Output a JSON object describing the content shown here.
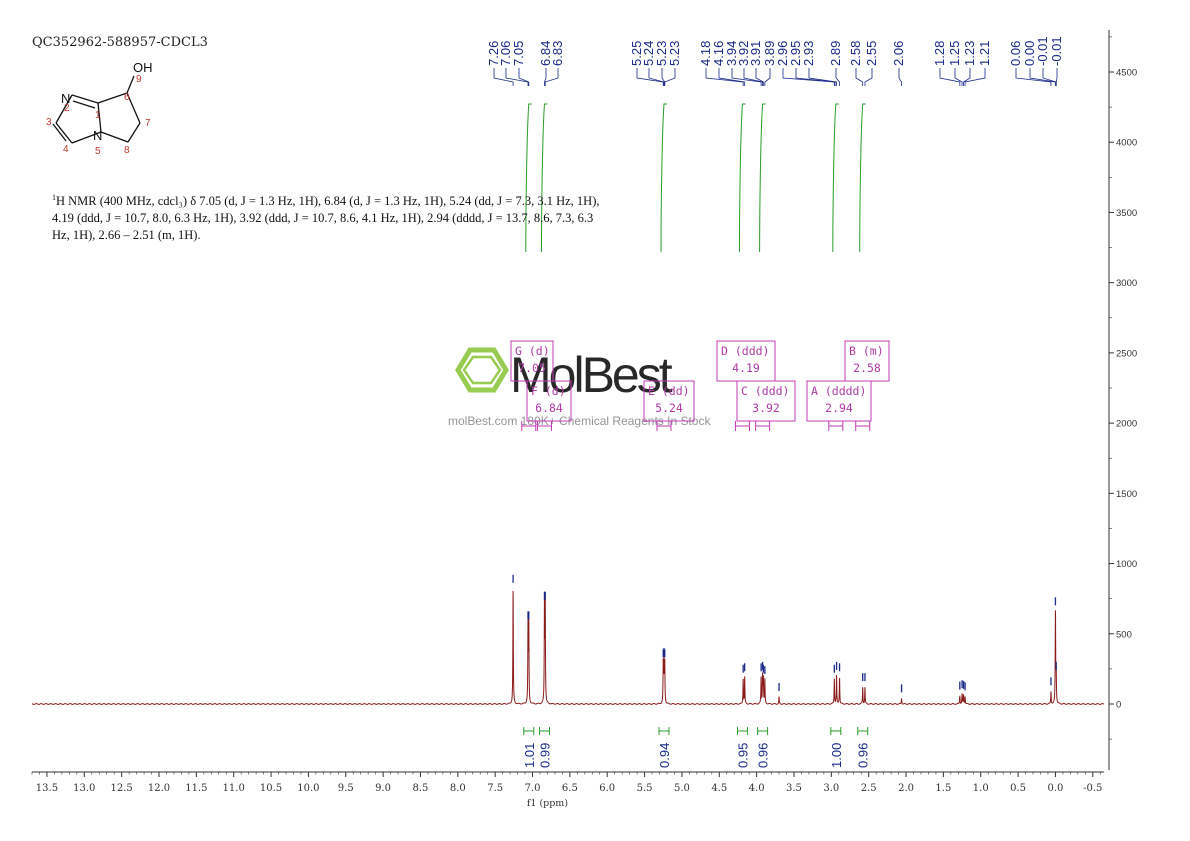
{
  "sample_id": "QC352962-588957-CDCL3",
  "structure": {
    "atoms": [
      "N",
      "OH",
      "N"
    ],
    "numbers": [
      "1",
      "2",
      "3",
      "4",
      "5",
      "6",
      "7",
      "8",
      "9"
    ]
  },
  "nmr_description": {
    "sup": "1",
    "text": "H NMR (400 MHz, cdcl₃) δ 7.05 (d, J = 1.3 Hz, 1H), 6.84 (d, J = 1.3 Hz, 1H), 5.24 (dd, J = 7.3, 3.1 Hz, 1H), 4.19 (ddd, J = 10.7, 8.0, 6.3 Hz, 1H), 3.92 (ddd, J = 10.7, 8.6, 4.1 Hz, 1H), 2.94 (dddd, J = 13.7, 8.6, 7.3, 6.3 Hz, 1H), 2.66 – 2.51 (m, 1H)."
  },
  "watermark": {
    "brand": "MolBest",
    "tagline": "molBest.com  180K+ Chemical Reagents In Stock"
  },
  "colors": {
    "spectrum": "#8b1a1a",
    "integral": "#2a9d2a",
    "peak_label": "#1a2a8a",
    "multiplet_box": "#c23bb5",
    "watermark_green": "#8dc63f"
  },
  "chart_data": {
    "type": "line",
    "xlabel": "f1 (ppm)",
    "xlim": [
      13.7,
      -0.65
    ],
    "x_reversed": true,
    "x_ticks": [
      "13.5",
      "13.0",
      "12.5",
      "12.0",
      "11.5",
      "11.0",
      "10.5",
      "10.0",
      "9.5",
      "9.0",
      "8.5",
      "8.0",
      "7.5",
      "7.0",
      "6.5",
      "6.0",
      "5.5",
      "5.0",
      "4.5",
      "4.0",
      "3.5",
      "3.0",
      "2.5",
      "2.0",
      "1.5",
      "1.0",
      "0.5",
      "0.0",
      "-0.5"
    ],
    "ylim": [
      -500,
      4750
    ],
    "y_ticks": [
      "4500",
      "4000",
      "3500",
      "3000",
      "2500",
      "2000",
      "1500",
      "1000",
      "500",
      "0"
    ],
    "peaks": [
      {
        "ppm": 7.26,
        "intensity": 820
      },
      {
        "ppm": 7.06,
        "intensity": 560
      },
      {
        "ppm": 7.05,
        "intensity": 560
      },
      {
        "ppm": 6.84,
        "intensity": 700
      },
      {
        "ppm": 6.83,
        "intensity": 700
      },
      {
        "ppm": 5.25,
        "intensity": 290
      },
      {
        "ppm": 5.24,
        "intensity": 300
      },
      {
        "ppm": 5.23,
        "intensity": 290
      },
      {
        "ppm": 4.18,
        "intensity": 180
      },
      {
        "ppm": 4.16,
        "intensity": 190
      },
      {
        "ppm": 3.94,
        "intensity": 190
      },
      {
        "ppm": 3.92,
        "intensity": 200
      },
      {
        "ppm": 3.91,
        "intensity": 180
      },
      {
        "ppm": 3.89,
        "intensity": 170
      },
      {
        "ppm": 3.7,
        "intensity": 50
      },
      {
        "ppm": 2.96,
        "intensity": 180
      },
      {
        "ppm": 2.93,
        "intensity": 200
      },
      {
        "ppm": 2.89,
        "intensity": 190
      },
      {
        "ppm": 2.58,
        "intensity": 120
      },
      {
        "ppm": 2.55,
        "intensity": 120
      },
      {
        "ppm": 2.06,
        "intensity": 40
      },
      {
        "ppm": 1.28,
        "intensity": 60
      },
      {
        "ppm": 1.25,
        "intensity": 70
      },
      {
        "ppm": 1.23,
        "intensity": 65
      },
      {
        "ppm": 1.21,
        "intensity": 55
      },
      {
        "ppm": 0.06,
        "intensity": 90
      },
      {
        "ppm": 0.0,
        "intensity": 660
      },
      {
        "ppm": -0.01,
        "intensity": 200
      }
    ],
    "peak_labels": [
      {
        "group": [
          {
            "text": "7.26",
            "ppm": 7.26
          },
          {
            "text": "7.06",
            "ppm": 7.06
          },
          {
            "text": "7.05",
            "ppm": 7.05
          },
          {
            "text": "6.84",
            "ppm": 6.84
          },
          {
            "text": "6.83",
            "ppm": 6.83
          }
        ]
      },
      {
        "group": [
          {
            "text": "5.25",
            "ppm": 5.25
          },
          {
            "text": "5.24",
            "ppm": 5.24
          },
          {
            "text": "5.23",
            "ppm": 5.23
          },
          {
            "text": "5.23",
            "ppm": 5.23
          }
        ]
      },
      {
        "group": [
          {
            "text": "4.18",
            "ppm": 4.18
          },
          {
            "text": "4.16",
            "ppm": 4.16
          },
          {
            "text": "3.94",
            "ppm": 3.94
          },
          {
            "text": "3.92",
            "ppm": 3.92
          },
          {
            "text": "3.91",
            "ppm": 3.91
          },
          {
            "text": "3.89",
            "ppm": 3.89
          },
          {
            "text": "2.96",
            "ppm": 2.96
          },
          {
            "text": "2.95",
            "ppm": 2.95
          },
          {
            "text": "2.93",
            "ppm": 2.93
          },
          {
            "text": "2.89",
            "ppm": 2.89
          }
        ]
      },
      {
        "group": [
          {
            "text": "2.58",
            "ppm": 2.58
          },
          {
            "text": "2.55",
            "ppm": 2.55
          },
          {
            "text": "2.06",
            "ppm": 2.06
          }
        ]
      },
      {
        "group": [
          {
            "text": "1.28",
            "ppm": 1.28
          },
          {
            "text": "1.25",
            "ppm": 1.25
          },
          {
            "text": "1.23",
            "ppm": 1.23
          },
          {
            "text": "1.21",
            "ppm": 1.21
          }
        ]
      },
      {
        "group": [
          {
            "text": "0.06",
            "ppm": 0.06
          },
          {
            "text": "0.00",
            "ppm": 0.0
          },
          {
            "text": "-0.01",
            "ppm": -0.01
          },
          {
            "text": "-0.01",
            "ppm": -0.01
          }
        ]
      }
    ],
    "integrals": [
      {
        "ppm": 7.05,
        "value": "1.01"
      },
      {
        "ppm": 6.84,
        "value": "0.99"
      },
      {
        "ppm": 5.24,
        "value": "0.94"
      },
      {
        "ppm": 4.19,
        "value": "0.95"
      },
      {
        "ppm": 3.92,
        "value": "0.96"
      },
      {
        "ppm": 2.94,
        "value": "1.00"
      },
      {
        "ppm": 2.58,
        "value": "0.96"
      }
    ],
    "multiplets": [
      {
        "letter": "G",
        "mult": "(d)",
        "shift": "7.05"
      },
      {
        "letter": "F",
        "mult": "(d)",
        "shift": "6.84"
      },
      {
        "letter": "E",
        "mult": "(dd)",
        "shift": "5.24"
      },
      {
        "letter": "D",
        "mult": "(ddd)",
        "shift": "4.19"
      },
      {
        "letter": "C",
        "mult": "(ddd)",
        "shift": "3.92"
      },
      {
        "letter": "A",
        "mult": "(dddd)",
        "shift": "2.94"
      },
      {
        "letter": "B",
        "mult": "(m)",
        "shift": "2.58"
      }
    ]
  }
}
